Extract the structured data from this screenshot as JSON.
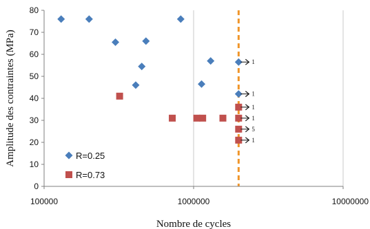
{
  "chart_data": {
    "type": "scatter",
    "title": "",
    "xlabel": "Nombre de cycles",
    "ylabel": "Amplitude des contraintes (MPa)",
    "x_scale": "log",
    "xlim": [
      100000,
      10000000
    ],
    "ylim": [
      0,
      80
    ],
    "x_ticks": [
      "100000",
      "1000000",
      "10000000"
    ],
    "y_ticks": [
      "0",
      "10",
      "20",
      "30",
      "40",
      "50",
      "60",
      "70",
      "80"
    ],
    "grid": "vertical at decades",
    "legend": "bottom-left",
    "reference_line": {
      "x": 2000000,
      "style": "dashed",
      "color": "#f0962a"
    },
    "series": [
      {
        "name": "R=0.25",
        "marker": "diamond",
        "color": "#4a7ebb",
        "points": [
          {
            "x": 130000,
            "y": 76
          },
          {
            "x": 200000,
            "y": 76
          },
          {
            "x": 300000,
            "y": 65.5
          },
          {
            "x": 410000,
            "y": 46
          },
          {
            "x": 450000,
            "y": 54.5
          },
          {
            "x": 480000,
            "y": 66
          },
          {
            "x": 820000,
            "y": 76
          },
          {
            "x": 1130000,
            "y": 46.5
          },
          {
            "x": 1300000,
            "y": 57
          },
          {
            "x": 2000000,
            "y": 56.5
          },
          {
            "x": 2000000,
            "y": 42
          }
        ]
      },
      {
        "name": "R=0.73",
        "marker": "square",
        "color": "#c0504d",
        "points": [
          {
            "x": 320000,
            "y": 41
          },
          {
            "x": 720000,
            "y": 31
          },
          {
            "x": 1050000,
            "y": 31
          },
          {
            "x": 1150000,
            "y": 31
          },
          {
            "x": 1570000,
            "y": 31
          },
          {
            "x": 2000000,
            "y": 36
          },
          {
            "x": 2000000,
            "y": 31
          },
          {
            "x": 2000000,
            "y": 26
          },
          {
            "x": 2000000,
            "y": 21
          }
        ]
      }
    ],
    "runouts": [
      {
        "x": 2000000,
        "y": 56.5,
        "label": "1"
      },
      {
        "x": 2000000,
        "y": 42,
        "label": "1"
      },
      {
        "x": 2000000,
        "y": 36,
        "label": "1"
      },
      {
        "x": 2000000,
        "y": 31,
        "label": "1"
      },
      {
        "x": 2000000,
        "y": 26,
        "label": "5"
      },
      {
        "x": 2000000,
        "y": 21,
        "label": "1"
      }
    ]
  }
}
